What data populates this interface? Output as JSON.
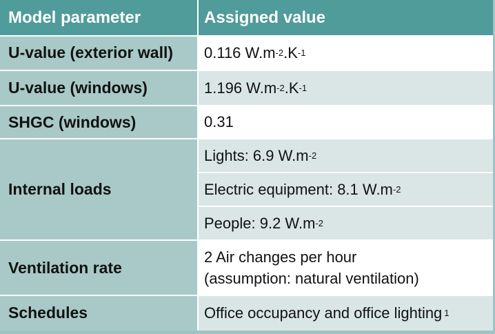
{
  "header": {
    "parameter_label": "Model parameter",
    "value_label": "Assigned value"
  },
  "rows": [
    {
      "parameter": "U-value (exterior wall)",
      "value_main": "0.116 W.m",
      "sup1": "-2",
      "value_mid": ".K",
      "sup2": "-1"
    },
    {
      "parameter": "U-value (windows)",
      "value_main": "1.196 W.m",
      "sup1": "-2",
      "value_mid": ".K",
      "sup2": "-1"
    },
    {
      "parameter": "SHGC (windows)",
      "value": "0.31"
    },
    {
      "parameter": "Internal loads",
      "values": [
        {
          "text": "Lights: 6.9 W.m",
          "sup": "-2"
        },
        {
          "text": "Electric equipment: 8.1 W.m",
          "sup": "-2"
        },
        {
          "text": "People: 9.2 W.m",
          "sup": "-2"
        }
      ]
    },
    {
      "parameter": "Ventilation rate",
      "value_line1": "2 Air changes per hour",
      "value_line2": "(assumption: natural ventilation)"
    },
    {
      "parameter": "Schedules",
      "value": "Office occupancy and office lighting",
      "sup": "1"
    }
  ]
}
